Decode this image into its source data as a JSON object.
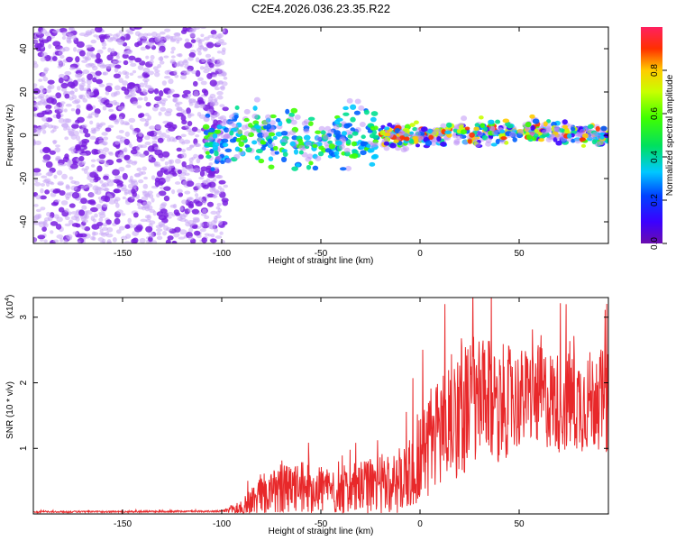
{
  "title": "C2E4.2026.036.23.35.R22",
  "colors": {
    "snr_line": "#e8282a",
    "axis": "#000000",
    "scatter_noise": "#7a20e0",
    "scatter_noise_light": "#c9a8f5"
  },
  "chart_data": [
    {
      "type": "heatmap",
      "name": "spectrogram",
      "title": "C2E4.2026.036.23.35.R22",
      "xlabel": "Height of straight line (km)",
      "ylabel": "Frequency (Hz)",
      "xlim": [
        -195,
        95
      ],
      "ylim": [
        -50,
        50
      ],
      "xticks": [
        -150,
        -100,
        -50,
        0,
        50
      ],
      "xtick_labels": [
        "-150",
        "-100",
        "-50",
        "0",
        "50"
      ],
      "yticks": [
        -40,
        -20,
        0,
        20,
        40
      ],
      "ytick_labels": [
        "-40",
        "-20",
        "0",
        "20",
        "40"
      ],
      "noise_region_x": [
        -195,
        -100
      ],
      "signal_trace": {
        "x": [
          -105,
          -95,
          -85,
          -75,
          -65,
          -55,
          -45,
          -35,
          -30,
          -25,
          -20,
          -10,
          0,
          10,
          20,
          30,
          40,
          50,
          60,
          70,
          80,
          90,
          95
        ],
        "y": [
          -3,
          0,
          1,
          -1,
          1,
          -6,
          -4,
          -2,
          2,
          0,
          0,
          -1,
          0,
          0,
          1,
          1,
          2,
          2,
          2,
          1,
          1,
          0,
          0
        ]
      },
      "colorbar": {
        "label": "Normalized spectral amplitude",
        "range": [
          0,
          1
        ],
        "ticks": [
          0.0,
          0.2,
          0.4,
          0.6,
          0.8
        ],
        "tick_labels": [
          "0.0",
          "0.2",
          "0.4",
          "0.6",
          "0.8"
        ]
      }
    },
    {
      "type": "line",
      "name": "snr",
      "xlabel": "Height of straight line (km)",
      "ylabel": "SNR (10 * v/v)",
      "y_multiplier": "(x10",
      "y_multiplier_exp": "4",
      "xlim": [
        -195,
        95
      ],
      "ylim": [
        0,
        3.3
      ],
      "xticks": [
        -150,
        -100,
        -50,
        0,
        50
      ],
      "xtick_labels": [
        "-150",
        "-100",
        "-50",
        "0",
        "50"
      ],
      "yticks": [
        1,
        2,
        3
      ],
      "ytick_labels": [
        "1",
        "2",
        "3"
      ],
      "series": [
        {
          "name": "SNR",
          "envelope_x": [
            -195,
            -100,
            -90,
            -80,
            -70,
            -60,
            -50,
            -40,
            -30,
            -20,
            -10,
            0,
            10,
            20,
            30,
            40,
            50,
            60,
            70,
            80,
            90,
            95
          ],
          "envelope_mean": [
            0.03,
            0.04,
            0.1,
            0.3,
            0.35,
            0.4,
            0.4,
            0.35,
            0.4,
            0.45,
            0.5,
            0.9,
            1.3,
            1.6,
            1.7,
            1.7,
            1.75,
            1.8,
            1.7,
            1.7,
            1.75,
            1.7
          ],
          "envelope_amp": [
            0.01,
            0.01,
            0.1,
            0.25,
            0.3,
            0.3,
            0.3,
            0.3,
            0.3,
            0.35,
            0.4,
            0.6,
            0.7,
            0.8,
            0.75,
            0.7,
            0.6,
            0.6,
            0.6,
            0.6,
            0.6,
            0.6
          ]
        }
      ]
    }
  ]
}
